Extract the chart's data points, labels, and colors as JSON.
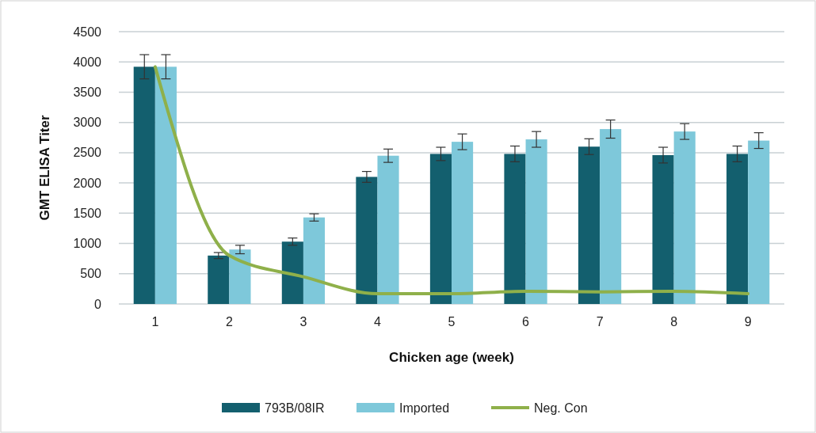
{
  "chart_data": {
    "type": "bar",
    "xlabel": "Chicken age (week)",
    "ylabel": "GMT ELISA Titer",
    "categories": [
      "1",
      "2",
      "3",
      "4",
      "5",
      "6",
      "7",
      "8",
      "9"
    ],
    "series": [
      {
        "name": "793B/08IR",
        "color": "#135f6e",
        "values": [
          3920,
          800,
          1030,
          2100,
          2480,
          2480,
          2600,
          2460,
          2480
        ],
        "errors": [
          200,
          50,
          60,
          90,
          110,
          130,
          130,
          130,
          130
        ]
      },
      {
        "name": "Imported",
        "color": "#7ec8da",
        "values": [
          3920,
          900,
          1430,
          2450,
          2680,
          2720,
          2890,
          2850,
          2700
        ],
        "errors": [
          200,
          70,
          60,
          110,
          130,
          130,
          150,
          130,
          130
        ]
      },
      {
        "name": "Neg. Con",
        "type": "line",
        "color": "#8fb04a",
        "values": [
          3920,
          800,
          450,
          170,
          170,
          210,
          200,
          210,
          170
        ]
      }
    ],
    "ylim": [
      0,
      4500
    ],
    "yticks": [
      0,
      500,
      1000,
      1500,
      2000,
      2500,
      3000,
      3500,
      4000,
      4500
    ],
    "grid": "y",
    "legend": "bottom",
    "marker": "none",
    "line_style": "solid"
  }
}
